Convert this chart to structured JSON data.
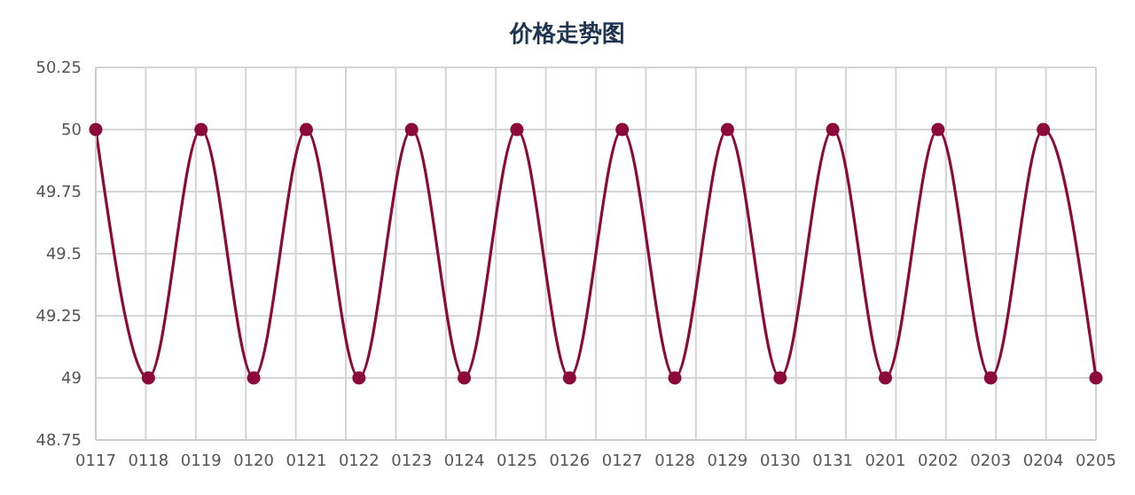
{
  "chart_data": {
    "type": "line",
    "title": "价格走势图",
    "categories": [
      "0117",
      "0118",
      "0119",
      "0120",
      "0121",
      "0122",
      "0123",
      "0124",
      "0125",
      "0126",
      "0127",
      "0128",
      "0129",
      "0130",
      "0131",
      "0201",
      "0202",
      "0203",
      "0204",
      "0205"
    ],
    "series": [
      {
        "color": "#8b0a3a",
        "values": [
          50,
          49,
          50,
          49,
          50,
          49,
          50,
          49,
          50,
          49,
          50,
          49,
          50,
          49,
          50,
          49,
          50,
          49,
          50,
          49
        ]
      }
    ],
    "ylim": [
      48.75,
      50.25
    ],
    "yticks": [
      48.75,
      49,
      49.25,
      49.5,
      49.75,
      50,
      50.25
    ],
    "grid": true,
    "marker": "circle",
    "line_style": "solid",
    "legend": false
  }
}
